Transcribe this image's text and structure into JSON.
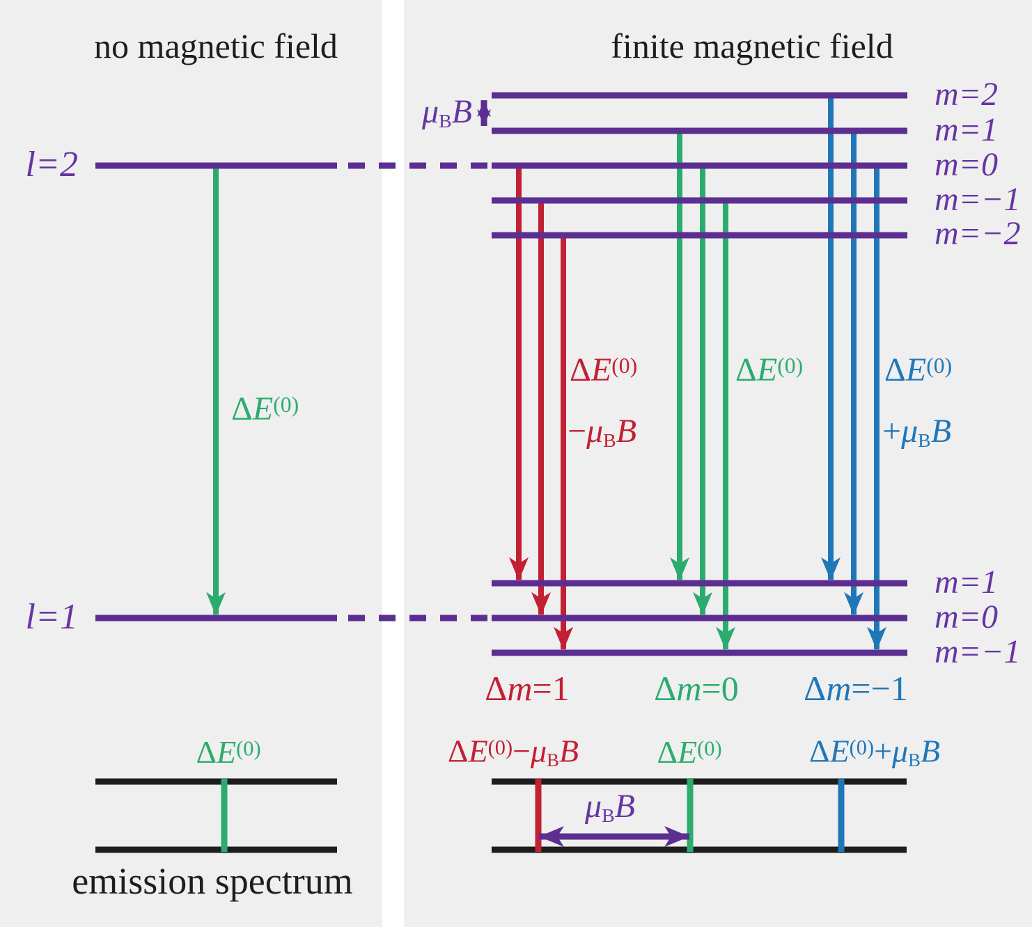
{
  "colors": {
    "purple": "#5c2e91",
    "purple_text": "#6635a3",
    "red": "#c22033",
    "green": "#2bac6e",
    "blue": "#2077b8",
    "black": "#1d1d1d",
    "panel_bg": "#efefef",
    "gap_bg": "#ffffff"
  },
  "header": {
    "left": "no magnetic field",
    "right": "finite magnetic field"
  },
  "left_panel": {
    "upper_level_label": [
      {
        "t": "l=2",
        "k": "i"
      }
    ],
    "lower_level_label": [
      {
        "t": "l=1",
        "k": "i"
      }
    ],
    "transition_label": [
      {
        "t": "Δ",
        "k": "r"
      },
      {
        "t": "E",
        "k": "i"
      },
      {
        "t": "(0)",
        "k": "sup"
      }
    ],
    "spectrum_line_label": [
      {
        "t": "Δ",
        "k": "r"
      },
      {
        "t": "E",
        "k": "i"
      },
      {
        "t": "(0)",
        "k": "sup"
      }
    ],
    "caption": "emission spectrum"
  },
  "right_panel": {
    "zeeman_splitting_label": [
      {
        "t": "μ",
        "k": "i"
      },
      {
        "t": "B",
        "k": "sub"
      },
      {
        "t": "B",
        "k": "i"
      }
    ],
    "upper_levels": {
      "m2": [
        {
          "t": "m=2",
          "k": "i"
        }
      ],
      "m1": [
        {
          "t": "m=1",
          "k": "i"
        }
      ],
      "m0": [
        {
          "t": "m=0",
          "k": "i"
        }
      ],
      "mneg1": [
        {
          "t": "m=−1",
          "k": "i"
        }
      ],
      "mneg2": [
        {
          "t": "m=−2",
          "k": "i"
        }
      ]
    },
    "lower_levels": {
      "m1": [
        {
          "t": "m=1",
          "k": "i"
        }
      ],
      "m0": [
        {
          "t": "m=0",
          "k": "i"
        }
      ],
      "mneg1": [
        {
          "t": "m=−1",
          "k": "i"
        }
      ]
    },
    "transitions": {
      "red": {
        "energy_line1": [
          {
            "t": "Δ",
            "k": "r"
          },
          {
            "t": "E",
            "k": "i"
          },
          {
            "t": "(0)",
            "k": "sup"
          }
        ],
        "energy_line2": [
          {
            "t": "−",
            "k": "r"
          },
          {
            "t": "μ",
            "k": "i"
          },
          {
            "t": "B",
            "k": "sub"
          },
          {
            "t": "B",
            "k": "i"
          }
        ],
        "selection_rule": [
          {
            "t": "Δ",
            "k": "r"
          },
          {
            "t": "m",
            "k": "i"
          },
          {
            "t": "=1",
            "k": "r"
          }
        ]
      },
      "green": {
        "energy_line1": [
          {
            "t": "Δ",
            "k": "r"
          },
          {
            "t": "E",
            "k": "i"
          },
          {
            "t": "(0)",
            "k": "sup"
          }
        ],
        "selection_rule": [
          {
            "t": "Δ",
            "k": "r"
          },
          {
            "t": "m",
            "k": "i"
          },
          {
            "t": "=0",
            "k": "r"
          }
        ]
      },
      "blue": {
        "energy_line1": [
          {
            "t": "Δ",
            "k": "r"
          },
          {
            "t": "E",
            "k": "i"
          },
          {
            "t": "(0)",
            "k": "sup"
          }
        ],
        "energy_line2": [
          {
            "t": "+",
            "k": "r"
          },
          {
            "t": "μ",
            "k": "i"
          },
          {
            "t": "B",
            "k": "sub"
          },
          {
            "t": "B",
            "k": "i"
          }
        ],
        "selection_rule": [
          {
            "t": "Δ",
            "k": "r"
          },
          {
            "t": "m",
            "k": "i"
          },
          {
            "t": "=−1",
            "k": "r"
          }
        ]
      }
    },
    "spectrum": {
      "red_line_label": [
        {
          "t": "Δ",
          "k": "r"
        },
        {
          "t": "E",
          "k": "i"
        },
        {
          "t": "(0)",
          "k": "sup"
        },
        {
          "t": "−",
          "k": "r"
        },
        {
          "t": "μ",
          "k": "i"
        },
        {
          "t": "B",
          "k": "sub"
        },
        {
          "t": "B",
          "k": "i"
        }
      ],
      "green_line_label": [
        {
          "t": "Δ",
          "k": "r"
        },
        {
          "t": "E",
          "k": "i"
        },
        {
          "t": "(0)",
          "k": "sup"
        }
      ],
      "blue_line_label": [
        {
          "t": "Δ",
          "k": "r"
        },
        {
          "t": "E",
          "k": "i"
        },
        {
          "t": "(0)",
          "k": "sup"
        },
        {
          "t": "+",
          "k": "r"
        },
        {
          "t": "μ",
          "k": "i"
        },
        {
          "t": "B",
          "k": "sub"
        },
        {
          "t": "B",
          "k": "i"
        }
      ],
      "splitting_label": [
        {
          "t": "μ",
          "k": "i"
        },
        {
          "t": "B",
          "k": "sub"
        },
        {
          "t": "B",
          "k": "i"
        }
      ]
    }
  }
}
